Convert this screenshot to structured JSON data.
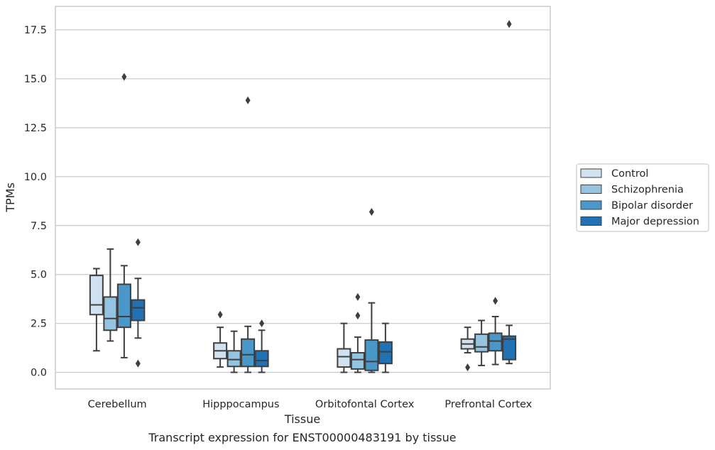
{
  "caption": "Transcript expression for ENST00000483191 by tissue",
  "chart_data": {
    "type": "boxplot",
    "title": "",
    "xlabel": "Tissue",
    "ylabel": "TPMs",
    "ylim": [
      -0.85,
      18.7
    ],
    "yticks": [
      0.0,
      2.5,
      5.0,
      7.5,
      10.0,
      12.5,
      15.0,
      17.5
    ],
    "ytick_labels": [
      "0.0",
      "2.5",
      "5.0",
      "7.5",
      "10.0",
      "12.5",
      "15.0",
      "17.5"
    ],
    "grid": "horizontal",
    "legend_position": "right",
    "categories": [
      "Cerebellum",
      "Hipppocampus",
      "Orbitofontal Cortex",
      "Prefrontal Cortex"
    ],
    "series": [
      {
        "name": "Control",
        "color": "#d0e1f2",
        "boxes": [
          {
            "whislo": 1.1,
            "q1": 2.95,
            "med": 3.45,
            "q3": 4.95,
            "whishi": 5.3,
            "fliers": []
          },
          {
            "whislo": 0.27,
            "q1": 0.7,
            "med": 1.1,
            "q3": 1.5,
            "whishi": 2.3,
            "fliers": [
              2.95
            ]
          },
          {
            "whislo": 0.0,
            "q1": 0.27,
            "med": 0.8,
            "q3": 1.2,
            "whishi": 2.5,
            "fliers": []
          },
          {
            "whislo": 1.0,
            "q1": 1.2,
            "med": 1.45,
            "q3": 1.7,
            "whishi": 2.3,
            "fliers": [
              0.25
            ]
          }
        ]
      },
      {
        "name": "Schizophrenia",
        "color": "#94c4df",
        "boxes": [
          {
            "whislo": 1.6,
            "q1": 2.15,
            "med": 2.75,
            "q3": 3.85,
            "whishi": 6.3,
            "fliers": []
          },
          {
            "whislo": 0.0,
            "q1": 0.3,
            "med": 0.65,
            "q3": 1.1,
            "whishi": 2.1,
            "fliers": []
          },
          {
            "whislo": 0.0,
            "q1": 0.17,
            "med": 0.65,
            "q3": 1.0,
            "whishi": 1.8,
            "fliers": [
              2.9,
              3.85
            ]
          },
          {
            "whislo": 0.35,
            "q1": 1.05,
            "med": 1.3,
            "q3": 1.95,
            "whishi": 2.65,
            "fliers": []
          }
        ]
      },
      {
        "name": "Bipolar disorder",
        "color": "#4a98c9",
        "boxes": [
          {
            "whislo": 0.75,
            "q1": 2.3,
            "med": 2.85,
            "q3": 4.5,
            "whishi": 5.45,
            "fliers": [
              15.1
            ]
          },
          {
            "whislo": 0.0,
            "q1": 0.3,
            "med": 0.9,
            "q3": 1.7,
            "whishi": 2.35,
            "fliers": [
              13.9
            ]
          },
          {
            "whislo": 0.0,
            "q1": 0.1,
            "med": 0.55,
            "q3": 1.65,
            "whishi": 3.55,
            "fliers": [
              8.2
            ]
          },
          {
            "whislo": 0.4,
            "q1": 1.1,
            "med": 1.6,
            "q3": 2.0,
            "whishi": 2.85,
            "fliers": [
              3.65
            ]
          }
        ]
      },
      {
        "name": "Major depression",
        "color": "#2171b5",
        "boxes": [
          {
            "whislo": 1.75,
            "q1": 2.65,
            "med": 3.3,
            "q3": 3.7,
            "whishi": 4.8,
            "fliers": [
              0.45,
              6.65
            ]
          },
          {
            "whislo": 0.0,
            "q1": 0.3,
            "med": 0.6,
            "q3": 1.1,
            "whishi": 2.15,
            "fliers": [
              2.5
            ]
          },
          {
            "whislo": 0.0,
            "q1": 0.45,
            "med": 1.05,
            "q3": 1.55,
            "whishi": 2.5,
            "fliers": []
          },
          {
            "whislo": 0.45,
            "q1": 0.65,
            "med": 1.7,
            "q3": 1.85,
            "whishi": 2.4,
            "fliers": [
              17.8
            ]
          }
        ]
      }
    ]
  }
}
